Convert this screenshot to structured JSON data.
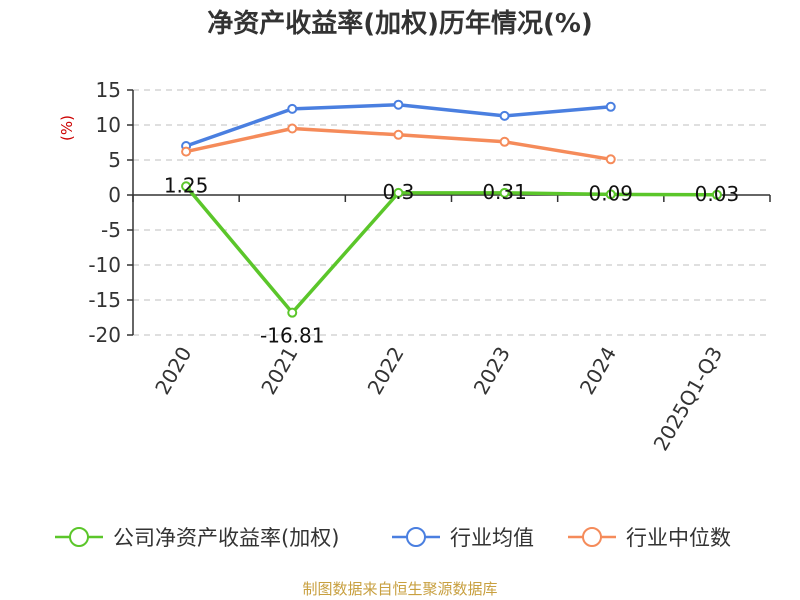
{
  "chart_data": {
    "type": "line",
    "title": "净资产收益率(加权)历年情况(%)",
    "ylabel": "(%)",
    "xlabel": "",
    "categories": [
      "2020",
      "2021",
      "2022",
      "2023",
      "2024",
      "2025Q1-Q3"
    ],
    "yticks": [
      "15",
      "10",
      "5",
      "0",
      "-5",
      "-10",
      "-15",
      "-20"
    ],
    "ylim": [
      -20,
      15
    ],
    "grid": true,
    "legend_position": "bottom",
    "series": [
      {
        "name": "公司净资产收益率(加权)",
        "color": "#5bc62a",
        "values": [
          1.25,
          -16.81,
          0.3,
          0.31,
          0.09,
          0.03
        ],
        "labels": [
          "1.25",
          "-16.81",
          "0.3",
          "0.31",
          "0.09",
          "0.03"
        ]
      },
      {
        "name": "行业均值",
        "color": "#4a7fe0",
        "values": [
          7.0,
          12.3,
          12.9,
          11.3,
          12.6,
          null
        ]
      },
      {
        "name": "行业中位数",
        "color": "#f58b5a",
        "values": [
          6.2,
          9.5,
          8.6,
          7.6,
          5.1,
          null
        ]
      }
    ]
  },
  "source": "制图数据来自恒生聚源数据库",
  "colors": {
    "axis": "#333333",
    "grid": "#cccccc",
    "ylabel": "#cc0000",
    "source": "#c8a040"
  }
}
